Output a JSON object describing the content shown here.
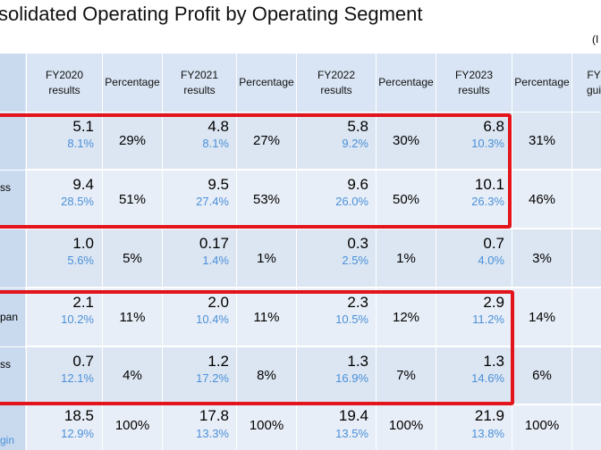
{
  "title": "solidated Operating Profit by Operating Segment",
  "unit_note": "(I",
  "headers": {
    "fy2020": "FY2020\nresults",
    "pct": "Percentage",
    "fy2021": "FY2021\nresults",
    "fy2022": "FY2022\nresults",
    "fy2023": "FY2023\nresults",
    "fy_next": "FY\ngui"
  },
  "rows": [
    {
      "label": "",
      "fy2020": {
        "value": "5.1",
        "sub": "8.1%",
        "pct": "29%"
      },
      "fy2021": {
        "value": "4.8",
        "sub": "8.1%",
        "pct": "27%"
      },
      "fy2022": {
        "value": "5.8",
        "sub": "9.2%",
        "pct": "30%"
      },
      "fy2023": {
        "value": "6.8",
        "sub": "10.3%",
        "pct": "31%"
      }
    },
    {
      "label": "ss",
      "fy2020": {
        "value": "9.4",
        "sub": "28.5%",
        "pct": "51%"
      },
      "fy2021": {
        "value": "9.5",
        "sub": "27.4%",
        "pct": "53%"
      },
      "fy2022": {
        "value": "9.6",
        "sub": "26.0%",
        "pct": "50%"
      },
      "fy2023": {
        "value": "10.1",
        "sub": "26.3%",
        "pct": "46%"
      }
    },
    {
      "label": "",
      "fy2020": {
        "value": "1.0",
        "sub": "5.6%",
        "pct": "5%"
      },
      "fy2021": {
        "value": "0.17",
        "sub": "1.4%",
        "pct": "1%"
      },
      "fy2022": {
        "value": "0.3",
        "sub": "2.5%",
        "pct": "1%"
      },
      "fy2023": {
        "value": "0.7",
        "sub": "4.0%",
        "pct": "3%"
      }
    },
    {
      "label": "pan",
      "fy2020": {
        "value": "2.1",
        "sub": "10.2%",
        "pct": "11%"
      },
      "fy2021": {
        "value": "2.0",
        "sub": "10.4%",
        "pct": "11%"
      },
      "fy2022": {
        "value": "2.3",
        "sub": "10.5%",
        "pct": "12%"
      },
      "fy2023": {
        "value": "2.9",
        "sub": "11.2%",
        "pct": "14%"
      }
    },
    {
      "label": "ss",
      "fy2020": {
        "value": "0.7",
        "sub": "12.1%",
        "pct": "4%"
      },
      "fy2021": {
        "value": "1.2",
        "sub": "17.2%",
        "pct": "8%"
      },
      "fy2022": {
        "value": "1.3",
        "sub": "16.9%",
        "pct": "7%"
      },
      "fy2023": {
        "value": "1.3",
        "sub": "14.6%",
        "pct": "6%"
      }
    },
    {
      "label": "gin",
      "fy2020": {
        "value": "18.5",
        "sub": "12.9%",
        "pct": "100%"
      },
      "fy2021": {
        "value": "17.8",
        "sub": "13.3%",
        "pct": "100%"
      },
      "fy2022": {
        "value": "19.4",
        "sub": "13.5%",
        "pct": "100%"
      },
      "fy2023": {
        "value": "21.9",
        "sub": "13.8%",
        "pct": "100%"
      }
    }
  ],
  "colors": {
    "header_bg": "#d9e5f4",
    "row_bg": "#dce6f2",
    "sub_text": "#4a90d9",
    "highlight_border": "#e3141b"
  }
}
